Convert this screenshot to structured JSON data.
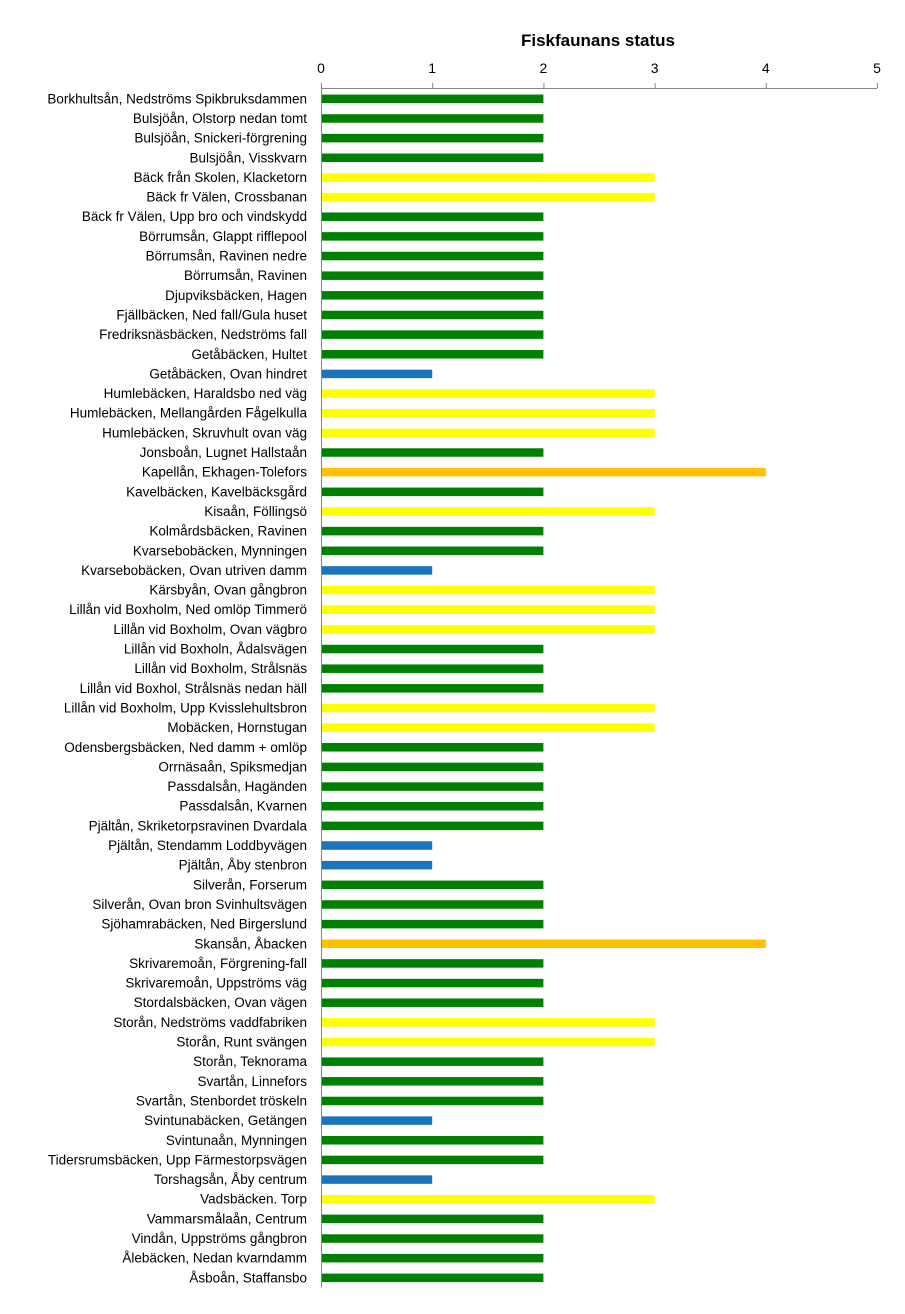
{
  "chart_data": {
    "type": "bar",
    "orientation": "horizontal",
    "title": "Fiskfaunans status",
    "xlabel": "",
    "ylabel": "",
    "xlim": [
      0,
      5
    ],
    "ticks": [
      0,
      1,
      2,
      3,
      4,
      5
    ],
    "axis_position": "top",
    "grid": false,
    "legend": "none",
    "colors": {
      "1": "#1b75bc",
      "2": "#008000",
      "3": "#ffff00",
      "4": "#ffc000"
    },
    "categories": [
      "Borkhultsån, Nedströms Spikbruksdammen",
      "Bulsjöån, Olstorp nedan tomt",
      "Bulsjöån, Snickeri-förgrening",
      "Bulsjöån, Visskvarn",
      "Bäck från Skolen, Klacketorn",
      "Bäck fr Välen, Crossbanan",
      "Bäck fr Välen, Upp bro och vindskydd",
      "Börrumsån, Glappt rifflepool",
      "Börrumsån, Ravinen nedre",
      "Börrumsån, Ravinen",
      "Djupviksbäcken, Hagen",
      "Fjällbäcken, Ned fall/Gula huset",
      "Fredriksnäsbäcken, Nedströms fall",
      "Getåbäcken, Hultet",
      "Getåbäcken, Ovan hindret",
      "Humlebäcken, Haraldsbo ned väg",
      "Humlebäcken, Mellangården Fågelkulla",
      "Humlebäcken, Skruvhult ovan väg",
      "Jonsboån, Lugnet Hallstaån",
      "Kapellån, Ekhagen-Tolefors",
      "Kavelbäcken, Kavelbäcksgård",
      "Kisaån, Föllingsö",
      "Kolmårdsbäcken, Ravinen",
      "Kvarsebobäcken, Mynningen",
      "Kvarsebobäcken, Ovan utriven damm",
      "Kärsbyån, Ovan gångbron",
      "Lillån vid Boxholm, Ned omlöp Timmerö",
      "Lillån vid Boxholm, Ovan vägbro",
      "Lillån vid Boxholn, Ådalsvägen",
      "Lillån vid Boxholm, Strålsnäs",
      "Lillån vid Boxhol, Strålsnäs nedan häll",
      "Lillån vid Boxholm, Upp Kvisslehultsbron",
      "Mobäcken, Hornstugan",
      "Odensbergsbäcken, Ned damm + omlöp",
      "Orrnäsaån, Spiksmedjan",
      "Passdalsån, Hagänden",
      "Passdalsån, Kvarnen",
      "Pjältån, Skriketorpsravinen Dvardala",
      "Pjältån, Stendamm Loddbyvägen",
      "Pjältån, Åby stenbron",
      "Silverån, Forserum",
      "Silverån, Ovan bron Svinhultsvägen",
      "Sjöhamrabäcken, Ned Birgerslund",
      "Skansån, Åbacken",
      "Skrivaremoån, Förgrening-fall",
      "Skrivaremoån, Uppströms väg",
      "Stordalsbäcken, Ovan vägen",
      "Storån, Nedströms vaddfabriken",
      "Storån, Runt svängen",
      "Storån, Teknorama",
      "Svartån, Linnefors",
      "Svartån, Stenbordet tröskeln",
      "Svintunabäcken, Getängen",
      "Svintunaån, Mynningen",
      "Tidersrumsbäcken, Upp Färmestorpsvägen",
      "Torshagsån, Åby centrum",
      "Vadsbäcken. Torp",
      "Vammarsmålaån, Centrum",
      "Vindån, Uppströms gångbron",
      "Ålebäcken, Nedan kvarndamm",
      "Åsboån, Staffansbo"
    ],
    "values": [
      2,
      2,
      2,
      2,
      3,
      3,
      2,
      2,
      2,
      2,
      2,
      2,
      2,
      2,
      1,
      3,
      3,
      3,
      2,
      4,
      2,
      3,
      2,
      2,
      1,
      3,
      3,
      3,
      2,
      2,
      2,
      3,
      3,
      2,
      2,
      2,
      2,
      2,
      1,
      1,
      2,
      2,
      2,
      4,
      2,
      2,
      2,
      3,
      3,
      2,
      2,
      2,
      1,
      2,
      2,
      1,
      3,
      2,
      2,
      2,
      2
    ]
  }
}
